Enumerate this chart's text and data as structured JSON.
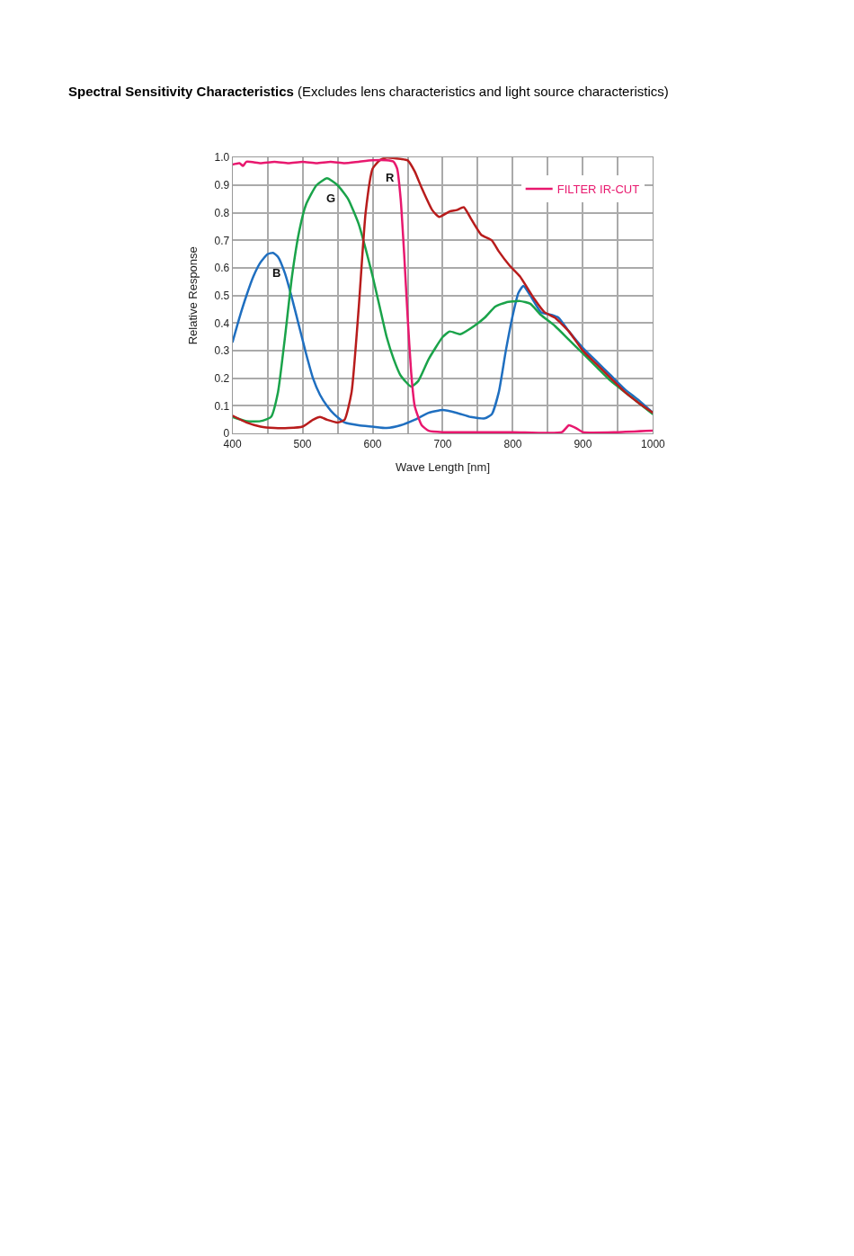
{
  "chart_data": {
    "type": "line",
    "title": "Spectral Sensitivity Characteristics (Excludes lens characteristics and light source characteristics)",
    "xlabel": "Wave Length [nm]",
    "ylabel": "Relative Response",
    "xlim": [
      400,
      1000
    ],
    "ylim": [
      0,
      1.0
    ],
    "xticks": [
      400,
      {
        "value": 450,
        "label": null
      },
      500,
      {
        "value": 550,
        "label": null
      },
      600,
      {
        "value": 650,
        "label": null
      },
      700,
      {
        "value": 750,
        "label": null
      },
      800,
      {
        "value": 850,
        "label": null
      },
      900,
      {
        "value": 950,
        "label": null
      },
      1000
    ],
    "yticks": [
      0,
      0.1,
      0.2,
      0.3,
      0.4,
      0.5,
      0.6,
      0.7,
      0.8,
      0.9,
      {
        "value": 1.0,
        "label": "1.0"
      }
    ],
    "grid": true,
    "legend": "top right",
    "line_style": "solid",
    "marker": "none",
    "series": [
      {
        "color": "#1f6fc0",
        "x": [
          400,
          410,
          420,
          430,
          440,
          450,
          458,
          465,
          475,
          485,
          495,
          505,
          515,
          525,
          535,
          545,
          560,
          580,
          600,
          620,
          640,
          660,
          680,
          700,
          720,
          740,
          760,
          770,
          780,
          790,
          800,
          808,
          815,
          825,
          840,
          855,
          865,
          880,
          900,
          920,
          940,
          960,
          980,
          1000
        ],
        "values": [
          0.33,
          0.42,
          0.5,
          0.57,
          0.62,
          0.65,
          0.655,
          0.64,
          0.58,
          0.49,
          0.39,
          0.29,
          0.2,
          0.14,
          0.1,
          0.07,
          0.04,
          0.03,
          0.025,
          0.02,
          0.03,
          0.05,
          0.075,
          0.085,
          0.075,
          0.06,
          0.055,
          0.07,
          0.15,
          0.3,
          0.43,
          0.51,
          0.535,
          0.5,
          0.44,
          0.43,
          0.42,
          0.37,
          0.31,
          0.26,
          0.21,
          0.16,
          0.12,
          0.075
        ]
      },
      {
        "color": "#1aa34a",
        "x": [
          400,
          420,
          440,
          455,
          465,
          475,
          485,
          495,
          505,
          520,
          535,
          550,
          565,
          580,
          590,
          600,
          610,
          620,
          630,
          640,
          655,
          665,
          680,
          700,
          710,
          725,
          745,
          760,
          775,
          790,
          810,
          825,
          840,
          860,
          880,
          900,
          920,
          940,
          960,
          980,
          1000
        ],
        "values": [
          0.06,
          0.045,
          0.045,
          0.06,
          0.15,
          0.35,
          0.57,
          0.73,
          0.83,
          0.9,
          0.925,
          0.9,
          0.85,
          0.76,
          0.67,
          0.57,
          0.46,
          0.35,
          0.27,
          0.21,
          0.17,
          0.19,
          0.27,
          0.35,
          0.37,
          0.36,
          0.39,
          0.42,
          0.46,
          0.475,
          0.48,
          0.47,
          0.43,
          0.39,
          0.34,
          0.29,
          0.24,
          0.19,
          0.15,
          0.11,
          0.07
        ]
      },
      {
        "color": "#b81c1c",
        "x": [
          400,
          420,
          440,
          460,
          480,
          500,
          515,
          525,
          535,
          550,
          560,
          570,
          580,
          590,
          600,
          610,
          620,
          640,
          650,
          660,
          670,
          685,
          695,
          710,
          720,
          730,
          740,
          755,
          770,
          780,
          795,
          810,
          830,
          845,
          860,
          880,
          900,
          920,
          940,
          960,
          980,
          1000
        ],
        "values": [
          0.065,
          0.04,
          0.025,
          0.02,
          0.02,
          0.025,
          0.05,
          0.06,
          0.05,
          0.04,
          0.05,
          0.15,
          0.45,
          0.8,
          0.96,
          0.99,
          1.0,
          0.995,
          0.99,
          0.95,
          0.89,
          0.81,
          0.785,
          0.805,
          0.81,
          0.82,
          0.78,
          0.72,
          0.7,
          0.66,
          0.61,
          0.57,
          0.49,
          0.44,
          0.42,
          0.37,
          0.3,
          0.25,
          0.2,
          0.15,
          0.11,
          0.075
        ]
      },
      {
        "name": "FILTER IR-CUT",
        "color": "#e8186e",
        "x": [
          400,
          410,
          415,
          420,
          440,
          460,
          480,
          500,
          520,
          540,
          560,
          580,
          600,
          620,
          630,
          635,
          640,
          645,
          650,
          655,
          660,
          670,
          680,
          700,
          800,
          870,
          880,
          890,
          900,
          950,
          1000
        ],
        "values": [
          0.975,
          0.98,
          0.97,
          0.985,
          0.98,
          0.985,
          0.98,
          0.985,
          0.98,
          0.985,
          0.98,
          0.985,
          0.99,
          0.99,
          0.985,
          0.96,
          0.85,
          0.65,
          0.42,
          0.22,
          0.1,
          0.03,
          0.01,
          0.005,
          0.005,
          0.005,
          0.03,
          0.02,
          0.005,
          0.005,
          0.01
        ]
      }
    ],
    "annotations": [
      "B",
      "G",
      "R"
    ]
  }
}
